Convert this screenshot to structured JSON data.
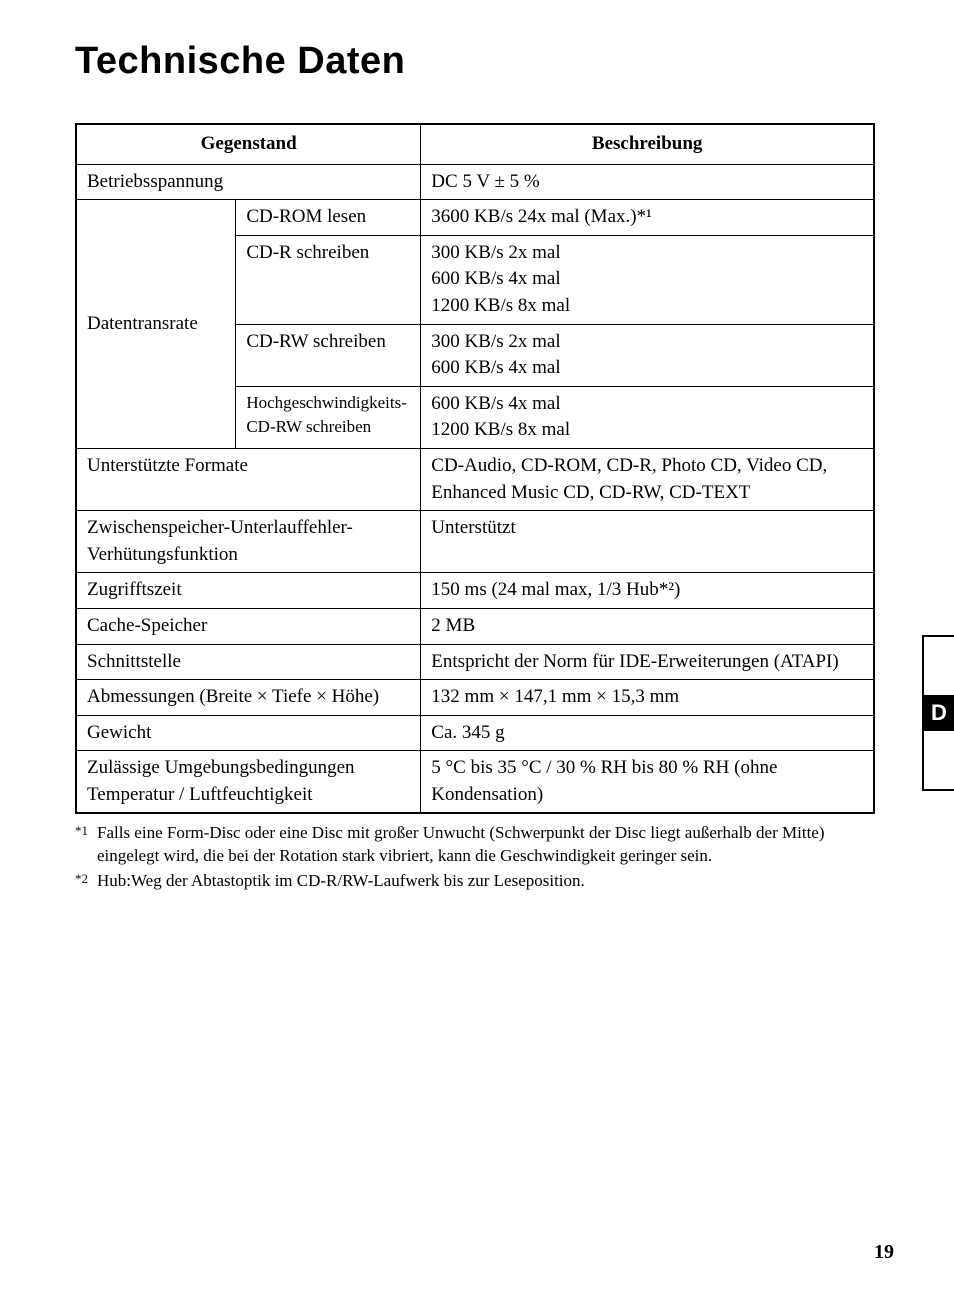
{
  "title": "Technische Daten",
  "table": {
    "headers": {
      "item": "Gegenstand",
      "description": "Beschreibung"
    },
    "rows": {
      "voltage": {
        "label": "Betriebsspannung",
        "value": "DC 5 V ± 5 %"
      },
      "datarate": {
        "label": "Datentransrate",
        "cdrom_read": {
          "label": "CD-ROM lesen",
          "value": "3600 KB/s 24x mal (Max.)*¹"
        },
        "cdr_write": {
          "label": "CD-R schreiben",
          "value": "300 KB/s 2x mal\n600 KB/s 4x mal\n1200 KB/s 8x mal"
        },
        "cdrw_write": {
          "label": "CD-RW schreiben",
          "value": "300 KB/s 2x mal\n600 KB/s 4x mal"
        },
        "hs_cdrw_write": {
          "label": "Hochgeschwindigkeits-CD-RW schreiben",
          "value": "600 KB/s 4x mal\n1200 KB/s 8x mal"
        }
      },
      "formats": {
        "label": "Unterstützte Formate",
        "value": "CD-Audio, CD-ROM, CD-R, Photo CD, Video CD, Enhanced Music CD, CD-RW, CD-TEXT"
      },
      "buffer": {
        "label": "Zwischenspeicher-Unterlauffehler-Verhütungsfunktion",
        "value": "Unterstützt"
      },
      "access": {
        "label": "Zugrifftszeit",
        "value": "150 ms (24 mal max, 1/3 Hub*²)"
      },
      "cache": {
        "label": "Cache-Speicher",
        "value": "2 MB"
      },
      "interface": {
        "label": "Schnittstelle",
        "value": "Entspricht der Norm für IDE-Erweiterungen (ATAPI)"
      },
      "dimensions": {
        "label": "Abmessungen (Breite × Tiefe × Höhe)",
        "value": "132 mm × 147,1 mm × 15,3 mm"
      },
      "weight": {
        "label": "Gewicht",
        "value": "Ca. 345 g"
      },
      "environment": {
        "label": "Zulässige Umgebungsbedingungen Temperatur / Luftfeuchtigkeit",
        "value": "5 °C bis 35 °C / 30 % RH bis 80 % RH (ohne Kondensation)"
      }
    }
  },
  "footnotes": {
    "note1": {
      "marker": "*1",
      "text": "Falls eine Form-Disc oder eine Disc mit großer Unwucht (Schwerpunkt der Disc liegt außerhalb der Mitte) eingelegt wird, die bei der Rotation stark vibriert, kann die Geschwindigkeit geringer sein."
    },
    "note2": {
      "marker": "*2",
      "text": "Hub:Weg der Abtastoptik im CD-R/RW-Laufwerk bis zur Leseposition."
    }
  },
  "page_number": "19",
  "side_tab_letter": "D"
}
